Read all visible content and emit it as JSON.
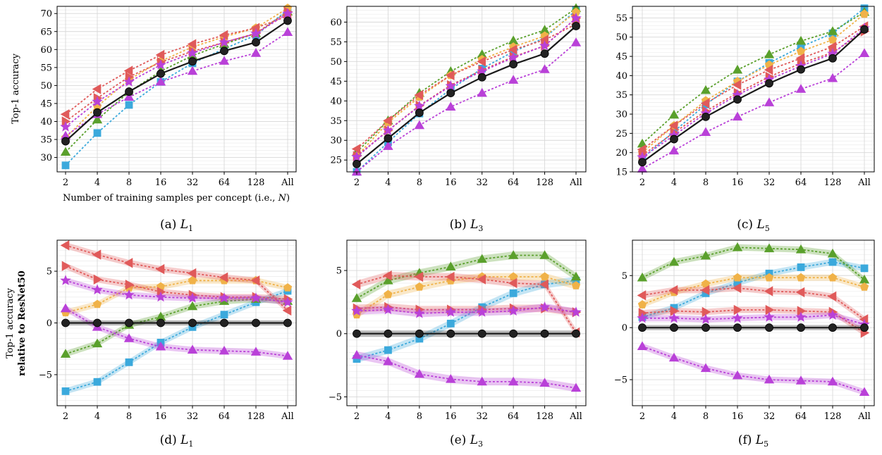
{
  "colors": {
    "resnet50": "#1a1a1a",
    "blue": "#3ba9dc",
    "green": "#5aa02c",
    "orange": "#f0b248",
    "red": "#e05a5a",
    "purple": "#b941d8",
    "grid": "#d9d9d9"
  },
  "labels": {
    "xlabel": "Number of training samples per concept (i.e., N)",
    "ylabel_top": "Top-1 accuracy",
    "ylabel_bottom_line1": "Top-1 accuracy",
    "ylabel_bottom_line2": "relative to ResNet50"
  },
  "captions": [
    {
      "prefix": "(a) ",
      "sym": "L",
      "sub": "1"
    },
    {
      "prefix": "(b) ",
      "sym": "L",
      "sub": "3"
    },
    {
      "prefix": "(c) ",
      "sym": "L",
      "sub": "5"
    },
    {
      "prefix": "(d) ",
      "sym": "L",
      "sub": "1"
    },
    {
      "prefix": "(e) ",
      "sym": "L",
      "sub": "3"
    },
    {
      "prefix": "(f) ",
      "sym": "L",
      "sub": "5"
    }
  ],
  "chart_data": [
    {
      "type": "line",
      "x": [
        "2",
        "4",
        "8",
        "16",
        "32",
        "64",
        "128",
        "All"
      ],
      "ylim": [
        26,
        72
      ],
      "yticks": [
        30,
        35,
        40,
        45,
        50,
        55,
        60,
        65,
        70
      ],
      "grid": true,
      "series": [
        {
          "color": "blue",
          "marker": "square",
          "values": [
            27.8,
            36.8,
            44.6,
            51.0,
            56.2,
            60.2,
            64.0,
            71.0
          ]
        },
        {
          "color": "green",
          "marker": "triangle-up",
          "values": [
            31.5,
            40.5,
            48.2,
            54.0,
            58.3,
            61.5,
            64.5,
            70.5
          ]
        },
        {
          "color": "orange",
          "marker": "pentagon",
          "values": [
            35.5,
            44.2,
            51.6,
            56.8,
            60.7,
            63.5,
            66.0,
            71.5
          ]
        },
        {
          "color": "red",
          "marker": "triangle-left",
          "values": [
            42.0,
            49.0,
            54.1,
            58.5,
            61.5,
            64.0,
            66.0,
            69.3
          ]
        },
        {
          "color": "red",
          "marker": "triangle-right",
          "values": [
            40.0,
            46.5,
            52.4,
            56.5,
            59.5,
            62.0,
            64.5,
            70.5
          ]
        },
        {
          "color": "purple",
          "marker": "star",
          "values": [
            38.5,
            45.5,
            51.0,
            55.7,
            59.0,
            62.0,
            64.4,
            70.0
          ]
        },
        {
          "color": "purple",
          "marker": "triangle-up",
          "values": [
            36.0,
            42.0,
            46.8,
            51.0,
            54.0,
            56.8,
            59.0,
            64.8
          ]
        },
        {
          "color": "resnet50",
          "marker": "circle",
          "values": [
            34.5,
            42.5,
            48.3,
            53.3,
            56.7,
            59.6,
            62.0,
            68.0
          ]
        }
      ]
    },
    {
      "type": "line",
      "x": [
        "2",
        "4",
        "8",
        "16",
        "32",
        "64",
        "128",
        "All"
      ],
      "ylim": [
        22,
        64
      ],
      "yticks": [
        25,
        30,
        35,
        40,
        45,
        50,
        55,
        60
      ],
      "grid": true,
      "series": [
        {
          "color": "blue",
          "marker": "square",
          "values": [
            22.0,
            29.5,
            36.8,
            43.0,
            48.2,
            52.5,
            56.0,
            63.0
          ]
        },
        {
          "color": "green",
          "marker": "triangle-up",
          "values": [
            27.0,
            35.0,
            42.0,
            47.5,
            51.8,
            55.3,
            58.0,
            63.5
          ]
        },
        {
          "color": "orange",
          "marker": "pentagon",
          "values": [
            26.0,
            34.5,
            41.0,
            46.5,
            50.5,
            53.7,
            56.5,
            62.5
          ]
        },
        {
          "color": "red",
          "marker": "triangle-left",
          "values": [
            27.8,
            35.0,
            41.5,
            46.5,
            50.0,
            53.0,
            55.5,
            59.5
          ]
        },
        {
          "color": "red",
          "marker": "triangle-right",
          "values": [
            26.0,
            32.5,
            38.8,
            44.0,
            47.8,
            51.2,
            54.0,
            61.0
          ]
        },
        {
          "color": "purple",
          "marker": "star",
          "values": [
            25.8,
            32.5,
            38.7,
            43.8,
            47.5,
            51.0,
            54.0,
            61.0
          ]
        },
        {
          "color": "purple",
          "marker": "triangle-up",
          "values": [
            22.0,
            28.5,
            33.8,
            38.5,
            42.0,
            45.3,
            48.0,
            54.8
          ]
        },
        {
          "color": "resnet50",
          "marker": "circle",
          "values": [
            24.0,
            30.5,
            37.0,
            42.0,
            46.0,
            49.3,
            52.0,
            59.0
          ]
        }
      ]
    },
    {
      "type": "line",
      "x": [
        "2",
        "4",
        "8",
        "16",
        "32",
        "64",
        "128",
        "All"
      ],
      "ylim": [
        15,
        58
      ],
      "yticks": [
        15,
        20,
        25,
        30,
        35,
        40,
        45,
        50,
        55
      ],
      "grid": true,
      "series": [
        {
          "color": "blue",
          "marker": "square",
          "values": [
            18.5,
            25.5,
            32.5,
            38.5,
            43.3,
            47.5,
            51.0,
            57.5
          ]
        },
        {
          "color": "green",
          "marker": "triangle-up",
          "values": [
            22.3,
            29.8,
            36.2,
            41.5,
            45.5,
            49.0,
            51.5,
            56.5
          ]
        },
        {
          "color": "orange",
          "marker": "pentagon",
          "values": [
            20.0,
            27.0,
            33.5,
            38.5,
            42.8,
            46.3,
            49.3,
            56.0
          ]
        },
        {
          "color": "red",
          "marker": "triangle-left",
          "values": [
            20.8,
            27.0,
            32.8,
            37.6,
            41.5,
            44.5,
            47.5,
            52.8
          ]
        },
        {
          "color": "red",
          "marker": "triangle-right",
          "values": [
            19.3,
            25.2,
            30.8,
            35.5,
            39.7,
            43.2,
            46.0,
            51.5
          ]
        },
        {
          "color": "purple",
          "marker": "star",
          "values": [
            18.8,
            24.5,
            30.2,
            35.0,
            39.0,
            42.5,
            45.7,
            52.3
          ]
        },
        {
          "color": "purple",
          "marker": "triangle-up",
          "values": [
            15.8,
            20.5,
            25.3,
            29.3,
            33.0,
            36.5,
            39.3,
            45.8
          ]
        },
        {
          "color": "resnet50",
          "marker": "circle",
          "values": [
            17.5,
            23.5,
            29.3,
            33.8,
            38.0,
            41.6,
            44.5,
            52.0
          ]
        }
      ]
    },
    {
      "type": "line",
      "x": [
        "2",
        "4",
        "8",
        "16",
        "32",
        "64",
        "128",
        "All"
      ],
      "ylim": [
        -8,
        8
      ],
      "yticks": [
        -5,
        0,
        5
      ],
      "grid": true,
      "series": [
        {
          "color": "blue",
          "marker": "square",
          "values": [
            -6.6,
            -5.7,
            -3.8,
            -1.9,
            -0.4,
            0.8,
            2.0,
            3.1
          ]
        },
        {
          "color": "green",
          "marker": "triangle-up",
          "values": [
            -3.0,
            -2.0,
            -0.2,
            0.6,
            1.6,
            2.1,
            2.3,
            2.1
          ]
        },
        {
          "color": "orange",
          "marker": "pentagon",
          "values": [
            1.0,
            1.8,
            3.4,
            3.5,
            4.1,
            4.1,
            4.1,
            3.4
          ]
        },
        {
          "color": "red",
          "marker": "triangle-left",
          "values": [
            7.5,
            6.6,
            5.8,
            5.2,
            4.8,
            4.4,
            4.1,
            1.2
          ]
        },
        {
          "color": "red",
          "marker": "triangle-right",
          "values": [
            5.5,
            4.2,
            3.7,
            3.0,
            2.7,
            2.5,
            2.5,
            2.3
          ]
        },
        {
          "color": "purple",
          "marker": "star",
          "values": [
            4.1,
            3.2,
            2.7,
            2.5,
            2.4,
            2.4,
            2.4,
            2.0
          ]
        },
        {
          "color": "purple",
          "marker": "triangle-up",
          "values": [
            1.4,
            -0.4,
            -1.5,
            -2.3,
            -2.6,
            -2.7,
            -2.8,
            -3.2
          ]
        },
        {
          "color": "resnet50",
          "marker": "circle",
          "values": [
            0,
            0,
            0,
            0,
            0,
            0,
            0,
            0
          ]
        }
      ]
    },
    {
      "type": "line",
      "x": [
        "2",
        "4",
        "8",
        "16",
        "32",
        "64",
        "128",
        "All"
      ],
      "ylim": [
        -5.7,
        7.4
      ],
      "yticks": [
        -5,
        0,
        5
      ],
      "grid": true,
      "series": [
        {
          "color": "blue",
          "marker": "square",
          "values": [
            -2.0,
            -1.3,
            -0.4,
            0.8,
            2.1,
            3.2,
            3.9,
            4.2
          ]
        },
        {
          "color": "green",
          "marker": "triangle-up",
          "values": [
            2.8,
            4.2,
            4.8,
            5.3,
            5.9,
            6.2,
            6.2,
            4.5
          ]
        },
        {
          "color": "orange",
          "marker": "pentagon",
          "values": [
            1.5,
            3.1,
            3.7,
            4.2,
            4.5,
            4.5,
            4.5,
            3.8
          ]
        },
        {
          "color": "red",
          "marker": "triangle-left",
          "values": [
            3.9,
            4.6,
            4.5,
            4.5,
            4.3,
            4.0,
            3.9,
            0.1
          ]
        },
        {
          "color": "red",
          "marker": "triangle-right",
          "values": [
            2.0,
            2.1,
            1.9,
            1.9,
            1.9,
            2.0,
            2.0,
            1.7
          ]
        },
        {
          "color": "purple",
          "marker": "star",
          "values": [
            1.8,
            1.9,
            1.6,
            1.7,
            1.7,
            1.8,
            2.1,
            1.7
          ]
        },
        {
          "color": "purple",
          "marker": "triangle-up",
          "values": [
            -1.7,
            -2.2,
            -3.2,
            -3.6,
            -3.8,
            -3.8,
            -3.9,
            -4.3
          ]
        },
        {
          "color": "resnet50",
          "marker": "circle",
          "values": [
            0,
            0,
            0,
            0,
            0,
            0,
            0,
            0
          ]
        }
      ]
    },
    {
      "type": "line",
      "x": [
        "2",
        "4",
        "8",
        "16",
        "32",
        "64",
        "128",
        "All"
      ],
      "ylim": [
        -7.5,
        8.4
      ],
      "yticks": [
        -5,
        0,
        5
      ],
      "grid": true,
      "series": [
        {
          "color": "blue",
          "marker": "square",
          "values": [
            1.0,
            1.9,
            3.3,
            4.3,
            5.2,
            5.8,
            6.3,
            5.7
          ]
        },
        {
          "color": "green",
          "marker": "triangle-up",
          "values": [
            4.8,
            6.3,
            6.9,
            7.7,
            7.6,
            7.5,
            7.1,
            4.6
          ]
        },
        {
          "color": "orange",
          "marker": "pentagon",
          "values": [
            2.2,
            3.4,
            4.2,
            4.8,
            4.8,
            4.8,
            4.8,
            3.9
          ]
        },
        {
          "color": "red",
          "marker": "triangle-left",
          "values": [
            3.1,
            3.6,
            3.6,
            3.8,
            3.5,
            3.4,
            3.0,
            0.8
          ]
        },
        {
          "color": "red",
          "marker": "triangle-right",
          "values": [
            1.4,
            1.6,
            1.5,
            1.7,
            1.7,
            1.6,
            1.5,
            -0.5
          ]
        },
        {
          "color": "purple",
          "marker": "star",
          "values": [
            0.9,
            0.9,
            0.8,
            0.9,
            1.0,
            1.0,
            1.2,
            0.3
          ]
        },
        {
          "color": "purple",
          "marker": "triangle-up",
          "values": [
            -1.8,
            -2.9,
            -3.9,
            -4.6,
            -5.0,
            -5.1,
            -5.2,
            -6.2
          ]
        },
        {
          "color": "resnet50",
          "marker": "circle",
          "values": [
            0,
            0,
            0,
            0,
            0,
            0,
            0,
            0
          ]
        }
      ]
    }
  ]
}
